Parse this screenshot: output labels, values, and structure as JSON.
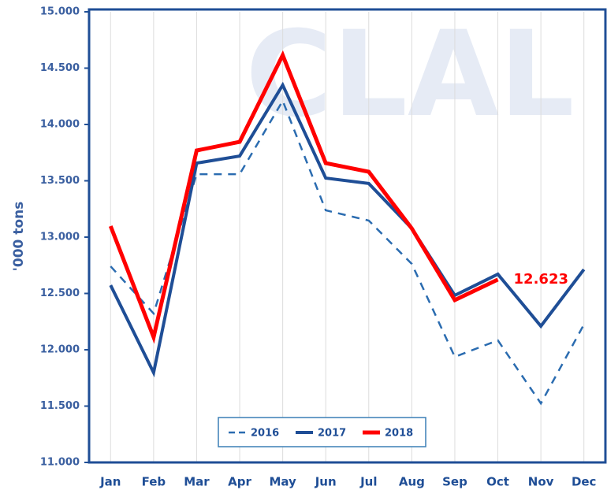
{
  "chart_data": {
    "type": "line",
    "watermark": "CLAL",
    "y_label": "'000 tons",
    "categories": [
      "Jan",
      "Feb",
      "Mar",
      "Apr",
      "May",
      "Jun",
      "Jul",
      "Aug",
      "Sep",
      "Oct",
      "Nov",
      "Dec"
    ],
    "series": [
      {
        "name": "2016",
        "color": "#2b6cb0",
        "dashed": true,
        "width": 2.5,
        "values": [
          12741,
          12322,
          13559,
          13559,
          14210,
          13238,
          13147,
          12762,
          11937,
          12084,
          11524,
          12224
        ]
      },
      {
        "name": "2017",
        "color": "#1f4e96",
        "dashed": false,
        "width": 4,
        "values": [
          12573,
          11797,
          13657,
          13720,
          14350,
          13524,
          13476,
          13077,
          12483,
          12671,
          12210,
          12713
        ]
      },
      {
        "name": "2018",
        "color": "#ff0000",
        "dashed": false,
        "width": 5,
        "values": [
          13098,
          12112,
          13769,
          13846,
          14615,
          13657,
          13580,
          13077,
          12441,
          12623,
          null,
          null
        ],
        "value_labels": [
          null,
          null,
          null,
          null,
          null,
          null,
          null,
          null,
          null,
          "12.623",
          null,
          null
        ]
      }
    ],
    "ylim": [
      11000,
      15000
    ],
    "yticks": [
      {
        "value": 11000,
        "label": "11.000"
      },
      {
        "value": 11500,
        "label": "11.500"
      },
      {
        "value": 12000,
        "label": "12.000"
      },
      {
        "value": 12500,
        "label": "12.500"
      },
      {
        "value": 13000,
        "label": "13.000"
      },
      {
        "value": 13500,
        "label": "13.500"
      },
      {
        "value": 14000,
        "label": "14.000"
      },
      {
        "value": 14500,
        "label": "14.500"
      },
      {
        "value": 15000,
        "label": "15.000"
      }
    ],
    "grid": true,
    "legend": "bottom"
  }
}
